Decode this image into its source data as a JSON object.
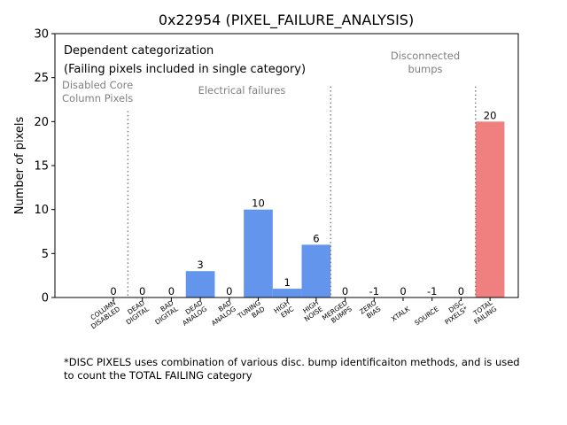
{
  "chart_data": {
    "type": "bar",
    "title": "0x22954 (PIXEL_FAILURE_ANALYSIS)",
    "xlabel": "",
    "ylabel": "Number of pixels",
    "ylim": [
      0,
      30
    ],
    "yticks": [
      0,
      5,
      10,
      15,
      20,
      25,
      30
    ],
    "categories": [
      "COLUMN\nDISABLED",
      "DEAD\nDIGITAL",
      "BAD\nDIGITAL",
      "DEAD\nANALOG",
      "BAD\nANALOG",
      "TUNING\nBAD",
      "HIGH\nENC",
      "HIGH\nNOISE",
      "MERGED\nBUMPS",
      "ZERO\nBIAS",
      "XTALK",
      "SOURCE",
      "DISC\nPIXELS*",
      "TOTAL\nFAILING"
    ],
    "values": [
      0,
      0,
      0,
      3,
      0,
      10,
      1,
      6,
      0,
      -1,
      0,
      -1,
      0,
      20
    ],
    "value_labels": [
      "0",
      "0",
      "0",
      "3",
      "0",
      "10",
      "1",
      "6",
      "0",
      "-1",
      "0",
      "-1",
      "0",
      "20"
    ],
    "bar_colors": [
      "#6495ed",
      "#6495ed",
      "#6495ed",
      "#6495ed",
      "#6495ed",
      "#6495ed",
      "#6495ed",
      "#6495ed",
      "#6495ed",
      "#6495ed",
      "#6495ed",
      "#6495ed",
      "#6495ed",
      "#f08080"
    ],
    "separators": [
      {
        "after_index": 0,
        "top_value": 21.2
      },
      {
        "after_index": 7,
        "top_value": 24.0
      },
      {
        "after_index": 12,
        "top_value": 24.0
      }
    ],
    "annotations": {
      "heading_line1": "Dependent categorization",
      "heading_line2": "(Failing pixels included in single category)",
      "group1_line1": "Disabled Core",
      "group1_line2": "Column Pixels",
      "group2": "Electrical failures",
      "group3_line1": "Disconnected",
      "group3_line2": "bumps"
    },
    "annotation_color": "#808080"
  },
  "footnote": {
    "line1": "*DISC PIXELS uses combination of various disc. bump identificaiton methods, and is used",
    "line2": "to count the TOTAL FAILING category"
  }
}
